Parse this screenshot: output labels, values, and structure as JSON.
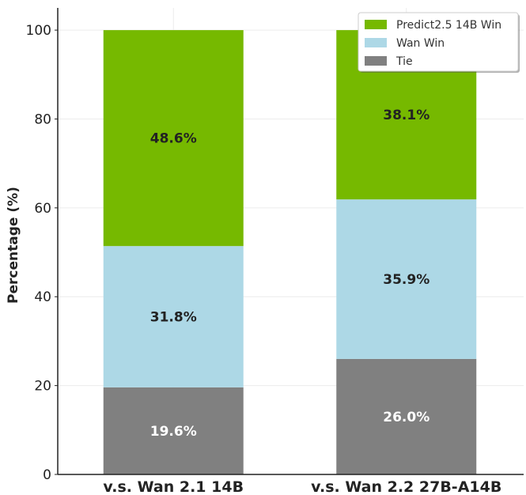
{
  "chart_data": {
    "type": "bar",
    "stacked": true,
    "categories": [
      "v.s. Wan 2.1 14B",
      "v.s. Wan 2.2 27B-A14B"
    ],
    "series": [
      {
        "name": "Tie",
        "values": [
          19.6,
          26.0
        ],
        "color": "#808080",
        "label_color": "#ffffff"
      },
      {
        "name": "Wan Win",
        "values": [
          31.8,
          35.9
        ],
        "color": "#add8e6",
        "label_color": "#222222"
      },
      {
        "name": "Predict2.5 14B Win",
        "values": [
          48.6,
          38.1
        ],
        "color": "#76b900",
        "label_color": "#222222"
      }
    ],
    "data_labels": [
      [
        "19.6%",
        "26.0%"
      ],
      [
        "31.8%",
        "35.9%"
      ],
      [
        "48.6%",
        "38.1%"
      ]
    ],
    "legend_order": [
      "Predict2.5 14B Win",
      "Wan Win",
      "Tie"
    ],
    "legend_position": "top-right",
    "title": "",
    "xlabel": "",
    "ylabel": "Percentage (%)",
    "ylim": [
      0,
      105
    ],
    "yticks": [
      0,
      20,
      40,
      60,
      80,
      100
    ],
    "grid": true
  }
}
